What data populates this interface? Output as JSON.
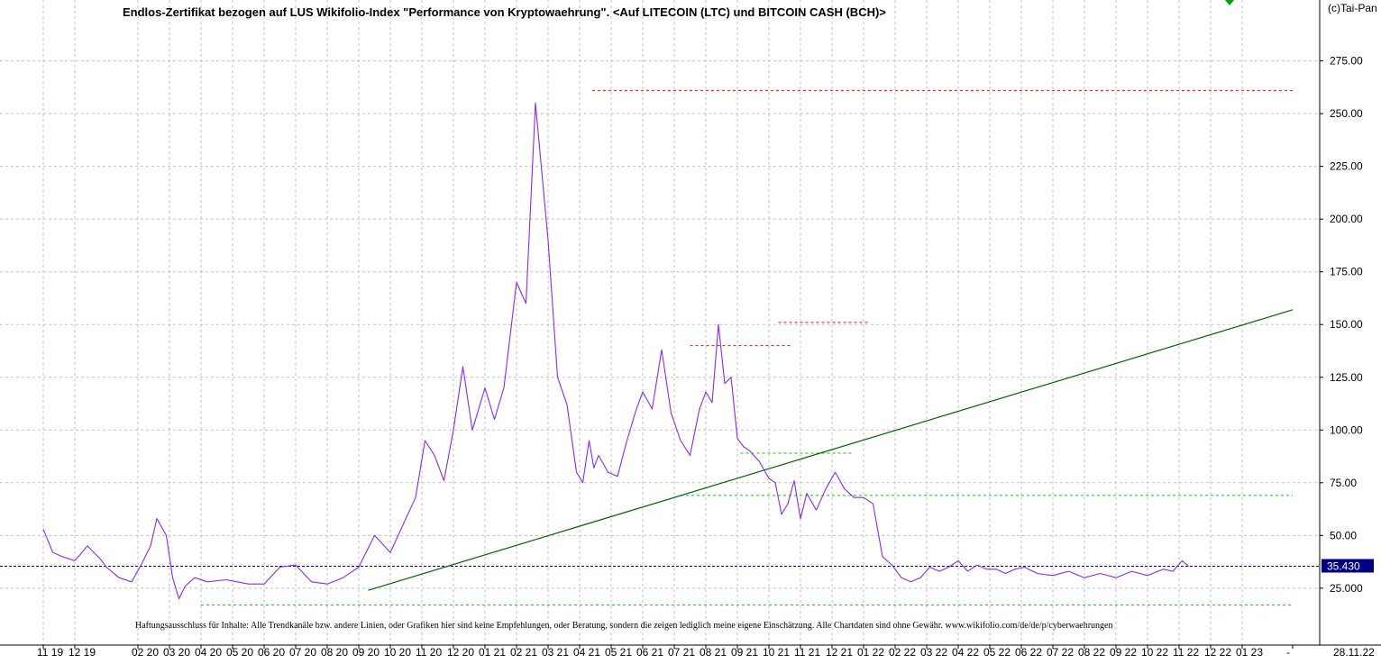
{
  "title": "Endlos-Zertifikat bezogen auf LUS Wikifolio-Index \"Performance von Kryptowaehrung\". <Auf LITECOIN (LTC) und BITCOIN CASH (BCH)>",
  "copyright": "(c)Tai-Pan",
  "disclaimer": "Haftungsausschluss für Inhalte: Alle Trendkanäle bzw. andere Linien, oder Grafiken hier sind keine Empfehlungen, oder Beratung, sondern die zeigen lediglich meine eigene Einschätzung. Alle Chartdaten sind ohne Gewähr.  www.wikifolio.com/de/de/p/cyberwaehrungen",
  "colors": {
    "price": "#8a2be2",
    "trendline": "#006400",
    "resistance": "#ff0000",
    "support": "#00cc00",
    "current_line": "#000080",
    "price_box": "#000080",
    "grid": "#c0c0c0"
  },
  "chart_data": {
    "type": "line",
    "ylim": [
      15,
      300
    ],
    "y_ticks": [
      25,
      50,
      75,
      100,
      125,
      150,
      175,
      200,
      225,
      250,
      275
    ],
    "y_tick_labels": [
      "25.000",
      "50.00",
      "75.00",
      "100.00",
      "125.00",
      "150.00",
      "175.00",
      "200.00",
      "225.00",
      "250.00",
      "275.00"
    ],
    "x_tick_labels": [
      "11 19",
      "12 19",
      "02 20",
      "03 20",
      "04 20",
      "05 20",
      "06 20",
      "07 20",
      "08 20",
      "09 20",
      "10 20",
      "11 20",
      "12 20",
      "01 21",
      "02 21",
      "03 21",
      "04 21",
      "05 21",
      "06 21",
      "07 21",
      "08 21",
      "09 21",
      "10 21",
      "11 21",
      "12 21",
      "01 22",
      "02 22",
      "03 22",
      "04 22",
      "05 22",
      "06 22",
      "07 22",
      "08 22",
      "09 22",
      "10 22",
      "11 22",
      "12 22",
      "01 23",
      "-"
    ],
    "x_tick_months": [
      0,
      1,
      3,
      4,
      5,
      6,
      7,
      8,
      9,
      10,
      11,
      12,
      13,
      14,
      15,
      16,
      17,
      18,
      19,
      20,
      21,
      22,
      23,
      24,
      25,
      26,
      27,
      28,
      29,
      30,
      31,
      32,
      33,
      34,
      35,
      36,
      37,
      38,
      39.6
    ],
    "last_date": "28.11.22",
    "current_value": "35.430",
    "series": [
      {
        "x": [
          0,
          0.3,
          0.6,
          1.0,
          1.4,
          1.8,
          2.0,
          2.4,
          2.8,
          3.1,
          3.4,
          3.6,
          3.9,
          4.1,
          4.3,
          4.5,
          4.8,
          5.2,
          5.8,
          6.5,
          7.0,
          7.5,
          8.0,
          8.5,
          9.0,
          9.5,
          10.0,
          10.5,
          11.0,
          11.4,
          11.8,
          12.1,
          12.4,
          12.7,
          13.0,
          13.3,
          13.6,
          14.0,
          14.3,
          14.6,
          15.0,
          15.3,
          15.6,
          16.0,
          16.3,
          16.6,
          16.9,
          17.1,
          17.3,
          17.45,
          17.6,
          17.9,
          18.2,
          18.5,
          18.8,
          19.0,
          19.3,
          19.6,
          19.9,
          20.2,
          20.5,
          20.8,
          21.0,
          21.2,
          21.4,
          21.6,
          21.8,
          22.0,
          22.2,
          22.4,
          22.7,
          23.0,
          23.2,
          23.4,
          23.6,
          23.8,
          24.0,
          24.2,
          24.5,
          24.8,
          25.1,
          25.4,
          25.7,
          26.0,
          26.3,
          26.6,
          26.9,
          27.2,
          27.5,
          27.8,
          28.1,
          28.4,
          28.7,
          29.0,
          29.3,
          29.6,
          29.9,
          30.2,
          30.5,
          30.8,
          31.1,
          31.5,
          32.0,
          32.5,
          33.0,
          33.5,
          34.0,
          34.5,
          35.0,
          35.5,
          35.8,
          36.1,
          36.3
        ],
        "values": [
          53,
          42,
          40,
          38,
          45,
          39,
          35,
          30,
          28,
          36,
          45,
          58,
          50,
          30,
          20,
          26,
          30,
          28,
          29,
          27,
          27,
          35,
          36,
          28,
          27,
          30,
          35,
          50,
          42,
          55,
          68,
          95,
          88,
          76,
          100,
          130,
          100,
          120,
          105,
          120,
          170,
          160,
          255,
          190,
          125,
          112,
          80,
          75,
          95,
          82,
          88,
          80,
          78,
          95,
          110,
          118,
          110,
          138,
          108,
          95,
          88,
          110,
          118,
          113,
          150,
          122,
          125,
          96,
          92,
          90,
          85,
          77,
          75,
          60,
          65,
          76,
          58,
          70,
          62,
          72,
          80,
          72,
          68,
          68,
          65,
          40,
          36,
          30,
          28,
          30,
          35,
          33,
          35,
          38,
          33,
          36,
          34,
          34,
          32,
          34,
          35,
          32,
          31,
          33,
          30,
          32,
          30,
          33,
          31,
          34,
          33,
          38,
          35.43
        ]
      }
    ],
    "annotations": {
      "trendline": {
        "x": [
          10.3,
          39.6
        ],
        "y": [
          24,
          157
        ]
      },
      "current_level": 35.43,
      "resistance_lines": [
        {
          "y": 261,
          "x": [
            17.4,
            39.6
          ]
        },
        {
          "y": 140,
          "x": [
            20.5,
            23.7
          ]
        },
        {
          "y": 151,
          "x": [
            23.3,
            26.2
          ]
        }
      ],
      "support_lines": [
        {
          "y": 89,
          "x": [
            22.1,
            25.7
          ]
        },
        {
          "y": 69,
          "x": [
            20.2,
            39.6
          ]
        },
        {
          "y": 17,
          "x": [
            5.0,
            39.6
          ]
        }
      ]
    }
  }
}
